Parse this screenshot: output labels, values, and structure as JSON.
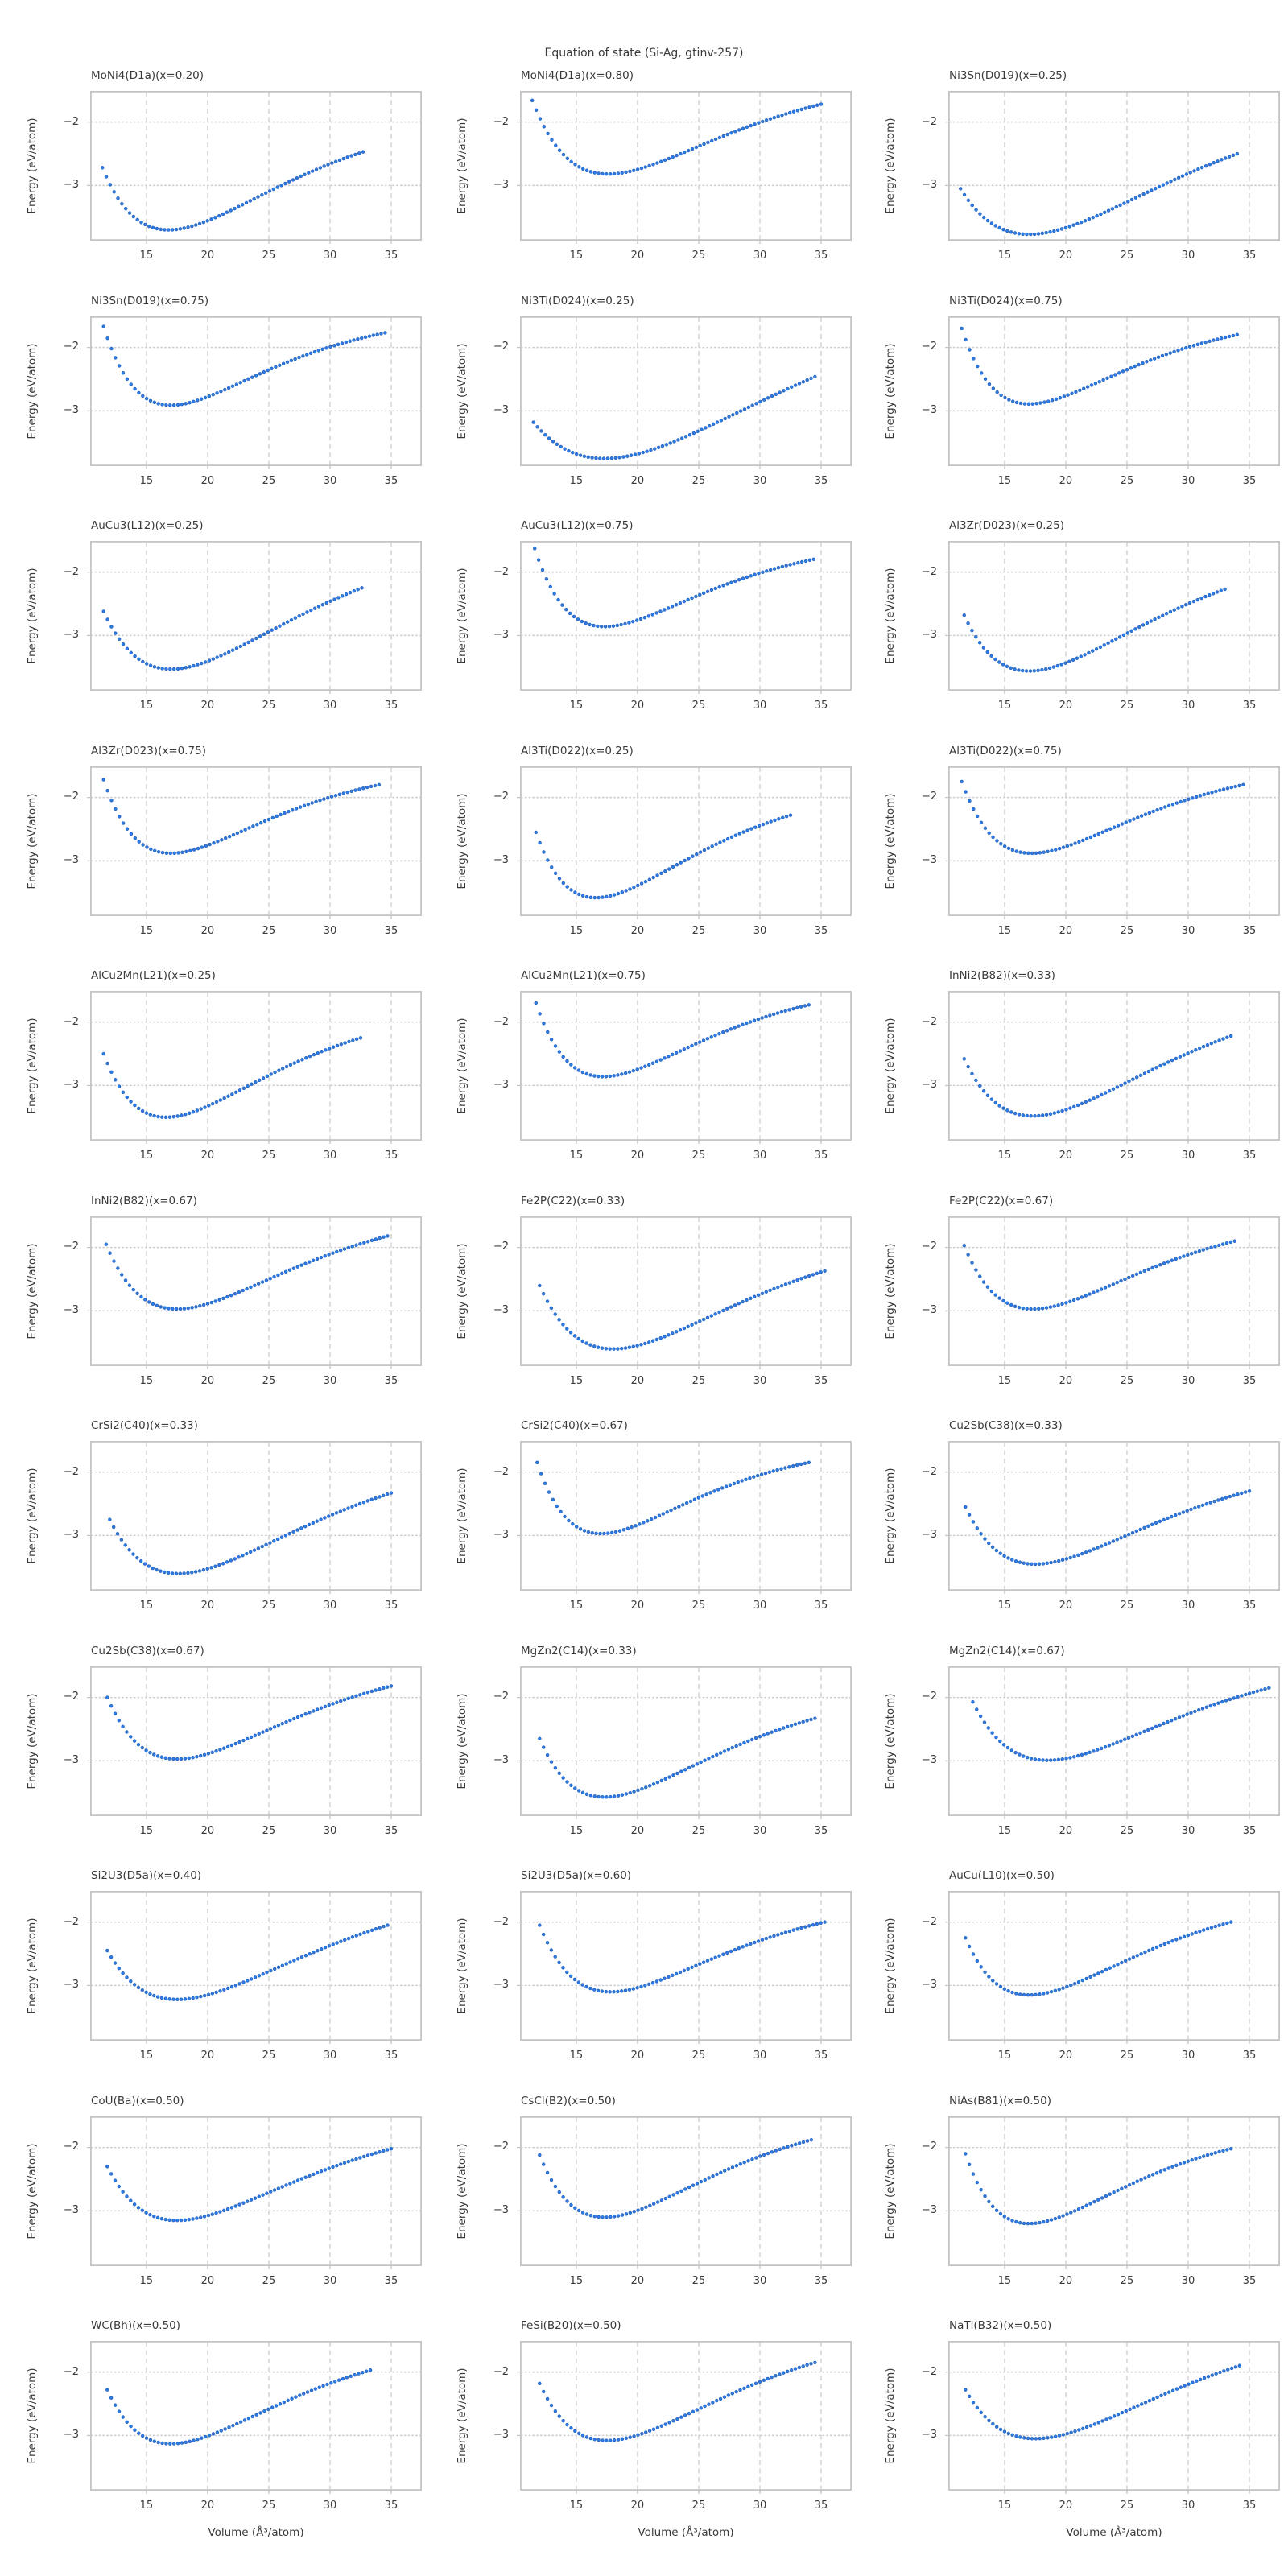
{
  "figure": {
    "suptitle": "Equation of state (Si-Ag, gtinv-257)",
    "xlabel": "Volume (Å³/atom)",
    "ylabel": "Energy (eV/atom)",
    "xticks": [
      "15",
      "20",
      "25",
      "30",
      "35"
    ],
    "xtick_values": [
      15,
      20,
      25,
      30,
      35
    ],
    "yticks": [
      {
        "value": -2,
        "label": "−2"
      },
      {
        "value": -3,
        "label": "−3"
      }
    ],
    "xlim": [
      10.4,
      37.5
    ],
    "ylim": [
      -3.87,
      -1.51
    ],
    "grid": "dashed",
    "legend": "none",
    "marker": "circle",
    "point_color": "#3079dd",
    "point_edge_color": "#1d5fc0",
    "grid_color": "#cdcdcd",
    "spine_color": "#c5c5c5",
    "text_color": "#3a3a3a",
    "volume_step": 0.32
  },
  "chart_data": [
    {
      "type": "scatter",
      "title": "MoNi4(D1a)(x=0.20)",
      "eos": {
        "v_start": 11.4,
        "e_start": -2.72,
        "v_min": 16.8,
        "e_min": -3.7,
        "v_end": 32.7,
        "e_end": -2.47
      }
    },
    {
      "type": "scatter",
      "title": "MoNi4(D1a)(x=0.80)",
      "eos": {
        "v_start": 11.4,
        "e_start": -1.66,
        "v_min": 17.6,
        "e_min": -2.82,
        "v_end": 35.0,
        "e_end": -1.72
      }
    },
    {
      "type": "scatter",
      "title": "Ni3Sn(D019)(x=0.25)",
      "eos": {
        "v_start": 11.4,
        "e_start": -3.05,
        "v_min": 17.0,
        "e_min": -3.77,
        "v_end": 34.0,
        "e_end": -2.5
      }
    },
    {
      "type": "scatter",
      "title": "Ni3Sn(D019)(x=0.75)",
      "eos": {
        "v_start": 11.5,
        "e_start": -1.67,
        "v_min": 17.0,
        "e_min": -2.91,
        "v_end": 34.5,
        "e_end": -1.77
      }
    },
    {
      "type": "scatter",
      "title": "Ni3Ti(D024)(x=0.25)",
      "eos": {
        "v_start": 11.5,
        "e_start": -3.18,
        "v_min": 17.3,
        "e_min": -3.75,
        "v_end": 34.5,
        "e_end": -2.46
      }
    },
    {
      "type": "scatter",
      "title": "Ni3Ti(D024)(x=0.75)",
      "eos": {
        "v_start": 11.5,
        "e_start": -1.7,
        "v_min": 17.0,
        "e_min": -2.89,
        "v_end": 34.0,
        "e_end": -1.8
      }
    },
    {
      "type": "scatter",
      "title": "AuCu3(L12)(x=0.25)",
      "eos": {
        "v_start": 11.5,
        "e_start": -2.62,
        "v_min": 17.0,
        "e_min": -3.53,
        "v_end": 32.6,
        "e_end": -2.25
      }
    },
    {
      "type": "scatter",
      "title": "AuCu3(L12)(x=0.75)",
      "eos": {
        "v_start": 11.6,
        "e_start": -1.63,
        "v_min": 17.3,
        "e_min": -2.86,
        "v_end": 34.4,
        "e_end": -1.8
      }
    },
    {
      "type": "scatter",
      "title": "Al3Zr(D023)(x=0.25)",
      "eos": {
        "v_start": 11.7,
        "e_start": -2.68,
        "v_min": 17.0,
        "e_min": -3.56,
        "v_end": 33.0,
        "e_end": -2.27
      }
    },
    {
      "type": "scatter",
      "title": "Al3Zr(D023)(x=0.75)",
      "eos": {
        "v_start": 11.5,
        "e_start": -1.72,
        "v_min": 17.0,
        "e_min": -2.88,
        "v_end": 34.0,
        "e_end": -1.8
      }
    },
    {
      "type": "scatter",
      "title": "Al3Ti(D022)(x=0.25)",
      "eos": {
        "v_start": 11.7,
        "e_start": -2.55,
        "v_min": 16.6,
        "e_min": -3.58,
        "v_end": 32.5,
        "e_end": -2.28
      }
    },
    {
      "type": "scatter",
      "title": "Al3Ti(D022)(x=0.75)",
      "eos": {
        "v_start": 11.5,
        "e_start": -1.75,
        "v_min": 17.2,
        "e_min": -2.88,
        "v_end": 34.5,
        "e_end": -1.8
      }
    },
    {
      "type": "scatter",
      "title": "AlCu2Mn(L21)(x=0.25)",
      "eos": {
        "v_start": 11.5,
        "e_start": -2.5,
        "v_min": 16.6,
        "e_min": -3.5,
        "v_end": 32.5,
        "e_end": -2.25
      }
    },
    {
      "type": "scatter",
      "title": "AlCu2Mn(L21)(x=0.75)",
      "eos": {
        "v_start": 11.7,
        "e_start": -1.7,
        "v_min": 17.2,
        "e_min": -2.86,
        "v_end": 34.0,
        "e_end": -1.73
      }
    },
    {
      "type": "scatter",
      "title": "InNi2(B82)(x=0.33)",
      "eos": {
        "v_start": 11.7,
        "e_start": -2.58,
        "v_min": 17.3,
        "e_min": -3.48,
        "v_end": 33.5,
        "e_end": -2.22
      }
    },
    {
      "type": "scatter",
      "title": "InNi2(B82)(x=0.67)",
      "eos": {
        "v_start": 11.7,
        "e_start": -1.95,
        "v_min": 17.5,
        "e_min": -2.97,
        "v_end": 34.7,
        "e_end": -1.82
      }
    },
    {
      "type": "scatter",
      "title": "Fe2P(C22)(x=0.33)",
      "eos": {
        "v_start": 12.0,
        "e_start": -2.6,
        "v_min": 18.0,
        "e_min": -3.6,
        "v_end": 35.3,
        "e_end": -2.37
      }
    },
    {
      "type": "scatter",
      "title": "Fe2P(C22)(x=0.67)",
      "eos": {
        "v_start": 11.7,
        "e_start": -1.97,
        "v_min": 17.3,
        "e_min": -2.97,
        "v_end": 33.8,
        "e_end": -1.9
      }
    },
    {
      "type": "scatter",
      "title": "CrSi2(C40)(x=0.33)",
      "eos": {
        "v_start": 12.0,
        "e_start": -2.75,
        "v_min": 17.6,
        "e_min": -3.6,
        "v_end": 35.0,
        "e_end": -2.33
      }
    },
    {
      "type": "scatter",
      "title": "CrSi2(C40)(x=0.67)",
      "eos": {
        "v_start": 11.8,
        "e_start": -1.85,
        "v_min": 17.0,
        "e_min": -2.97,
        "v_end": 34.0,
        "e_end": -1.85
      }
    },
    {
      "type": "scatter",
      "title": "Cu2Sb(C38)(x=0.33)",
      "eos": {
        "v_start": 11.8,
        "e_start": -2.55,
        "v_min": 17.5,
        "e_min": -3.45,
        "v_end": 35.0,
        "e_end": -2.3
      }
    },
    {
      "type": "scatter",
      "title": "Cu2Sb(C38)(x=0.67)",
      "eos": {
        "v_start": 11.8,
        "e_start": -2.0,
        "v_min": 17.5,
        "e_min": -2.97,
        "v_end": 35.0,
        "e_end": -1.82
      }
    },
    {
      "type": "scatter",
      "title": "MgZn2(C14)(x=0.33)",
      "eos": {
        "v_start": 12.0,
        "e_start": -2.65,
        "v_min": 17.3,
        "e_min": -3.57,
        "v_end": 34.5,
        "e_end": -2.33
      }
    },
    {
      "type": "scatter",
      "title": "MgZn2(C14)(x=0.67)",
      "eos": {
        "v_start": 12.4,
        "e_start": -2.07,
        "v_min": 18.5,
        "e_min": -2.99,
        "v_end": 36.6,
        "e_end": -1.85
      }
    },
    {
      "type": "scatter",
      "title": "Si2U3(D5a)(x=0.40)",
      "eos": {
        "v_start": 11.8,
        "e_start": -2.45,
        "v_min": 17.5,
        "e_min": -3.22,
        "v_end": 34.7,
        "e_end": -2.05
      }
    },
    {
      "type": "scatter",
      "title": "Si2U3(D5a)(x=0.60)",
      "eos": {
        "v_start": 12.0,
        "e_start": -2.05,
        "v_min": 17.8,
        "e_min": -3.1,
        "v_end": 35.3,
        "e_end": -2.0
      }
    },
    {
      "type": "scatter",
      "title": "AuCu(L10)(x=0.50)",
      "eos": {
        "v_start": 11.8,
        "e_start": -2.25,
        "v_min": 17.0,
        "e_min": -3.15,
        "v_end": 33.5,
        "e_end": -2.0
      }
    },
    {
      "type": "scatter",
      "title": "CoU(Ba)(x=0.50)",
      "eos": {
        "v_start": 11.8,
        "e_start": -2.3,
        "v_min": 17.5,
        "e_min": -3.15,
        "v_end": 35.0,
        "e_end": -2.02
      }
    },
    {
      "type": "scatter",
      "title": "CsCl(B2)(x=0.50)",
      "eos": {
        "v_start": 12.0,
        "e_start": -2.12,
        "v_min": 17.3,
        "e_min": -3.1,
        "v_end": 34.2,
        "e_end": -1.88
      }
    },
    {
      "type": "scatter",
      "title": "NiAs(B81)(x=0.50)",
      "eos": {
        "v_start": 11.8,
        "e_start": -2.1,
        "v_min": 17.0,
        "e_min": -3.2,
        "v_end": 33.5,
        "e_end": -2.02
      }
    },
    {
      "type": "scatter",
      "title": "WC(Bh)(x=0.50)",
      "eos": {
        "v_start": 11.8,
        "e_start": -2.28,
        "v_min": 17.0,
        "e_min": -3.13,
        "v_end": 33.3,
        "e_end": -1.97
      }
    },
    {
      "type": "scatter",
      "title": "FeSi(B20)(x=0.50)",
      "eos": {
        "v_start": 12.0,
        "e_start": -2.18,
        "v_min": 17.5,
        "e_min": -3.08,
        "v_end": 34.5,
        "e_end": -1.85
      }
    },
    {
      "type": "scatter",
      "title": "NaTl(B32)(x=0.50)",
      "eos": {
        "v_start": 11.8,
        "e_start": -2.28,
        "v_min": 17.5,
        "e_min": -3.05,
        "v_end": 34.2,
        "e_end": -1.9
      }
    }
  ]
}
